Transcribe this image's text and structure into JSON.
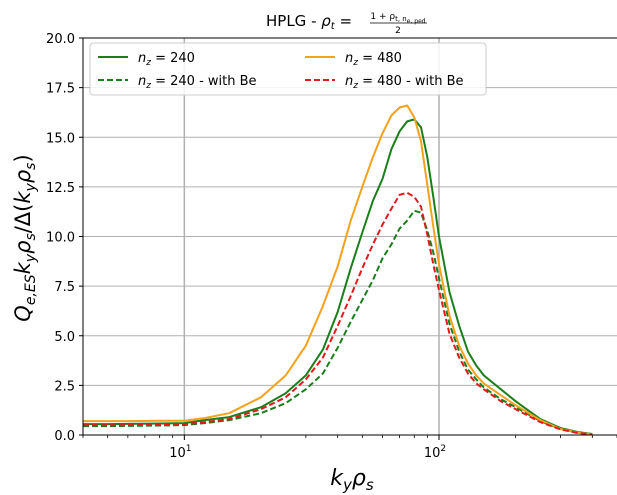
{
  "chart_data": {
    "type": "line",
    "title": "HPLG - ρt = (1 + ρt,ne,ped) / 2",
    "title_parts": {
      "prefix": "HPLG - ",
      "rho": "ρ",
      "rho_sub": "t",
      "equals": " = ",
      "numerator": "1 + ρ",
      "numerator_sub": "t, n",
      "numerator_subsub": "e, ped",
      "denominator": "2"
    },
    "xlabel": "kyρs",
    "xlabel_parts": {
      "k": "k",
      "k_sub": "y",
      "rho": "ρ",
      "rho_sub": "s"
    },
    "ylabel": "Qe,ES kyρs / Δ(kyρs)",
    "ylabel_parts": {
      "Q": "Q",
      "Q_sub": "e,ES",
      "k": "k",
      "k_sub": "y",
      "rho": "ρ",
      "rho_sub": "s",
      "mid": "/Δ(",
      "k2": "k",
      "k2_sub": "y",
      "rho2": "ρ",
      "rho2_sub": "s",
      "end": ")"
    },
    "xscale": "log",
    "xlim": [
      4,
      500
    ],
    "ylim": [
      0,
      20
    ],
    "x_ticks": [
      {
        "value": 10,
        "base": "10",
        "exp": "1"
      },
      {
        "value": 100,
        "base": "10",
        "exp": "2"
      }
    ],
    "y_ticks": [
      0.0,
      2.5,
      5.0,
      7.5,
      10.0,
      12.5,
      15.0,
      17.5,
      20.0
    ],
    "y_tick_labels": [
      "0.0",
      "2.5",
      "5.0",
      "7.5",
      "10.0",
      "12.5",
      "15.0",
      "17.5",
      "20.0"
    ],
    "grid": true,
    "legend_position": "top-left",
    "series": [
      {
        "name": "n_z = 240",
        "legend": {
          "n": "n",
          "sub": "z",
          "rest": " = 240"
        },
        "color": "#1a7f1a",
        "dash": "solid",
        "x": [
          4,
          5,
          6,
          8,
          10,
          12,
          15,
          20,
          25,
          30,
          35,
          40,
          45,
          50,
          55,
          60,
          65,
          70,
          75,
          80,
          85,
          90,
          95,
          100,
          110,
          120,
          130,
          140,
          150,
          175,
          200,
          250,
          300,
          350,
          400
        ],
        "y": [
          0.55,
          0.55,
          0.56,
          0.58,
          0.6,
          0.75,
          0.9,
          1.4,
          2.1,
          3.0,
          4.3,
          6.2,
          8.4,
          10.2,
          11.8,
          12.9,
          14.4,
          15.3,
          15.8,
          15.9,
          15.5,
          14.0,
          12.0,
          10.0,
          7.2,
          5.5,
          4.2,
          3.5,
          3.0,
          2.3,
          1.7,
          0.8,
          0.35,
          0.15,
          0.05
        ]
      },
      {
        "name": "n_z = 240 - with Be",
        "legend": {
          "n": "n",
          "sub": "z",
          "rest": " = 240 - with Be"
        },
        "color": "#1a7f1a",
        "dash": "dashed",
        "x": [
          4,
          5,
          6,
          8,
          10,
          12,
          15,
          20,
          25,
          30,
          35,
          40,
          45,
          50,
          55,
          60,
          65,
          70,
          75,
          80,
          85,
          90,
          95,
          100,
          110,
          120,
          130,
          140,
          150,
          175,
          200,
          250,
          300,
          350,
          400
        ],
        "y": [
          0.45,
          0.45,
          0.46,
          0.48,
          0.5,
          0.6,
          0.75,
          1.1,
          1.6,
          2.3,
          3.1,
          4.4,
          5.7,
          6.8,
          7.8,
          8.9,
          9.6,
          10.4,
          10.8,
          11.3,
          11.2,
          10.3,
          9.2,
          7.9,
          5.6,
          4.2,
          3.3,
          2.8,
          2.4,
          1.8,
          1.4,
          0.7,
          0.3,
          0.12,
          0.04
        ]
      },
      {
        "name": "n_z = 480",
        "legend": {
          "n": "n",
          "sub": "z",
          "rest": " = 480"
        },
        "color": "#f5a11c",
        "dash": "solid",
        "x": [
          4,
          5,
          6,
          8,
          10,
          12,
          15,
          20,
          25,
          30,
          35,
          40,
          45,
          50,
          55,
          60,
          65,
          70,
          75,
          80,
          85,
          90,
          95,
          100,
          110,
          120,
          130,
          140,
          150,
          175,
          200,
          250,
          300,
          350,
          400
        ],
        "y": [
          0.7,
          0.7,
          0.7,
          0.72,
          0.72,
          0.85,
          1.1,
          1.9,
          3.0,
          4.5,
          6.5,
          8.5,
          10.8,
          12.5,
          14.0,
          15.2,
          16.1,
          16.5,
          16.6,
          16.0,
          14.8,
          12.6,
          10.5,
          8.6,
          6.0,
          4.5,
          3.6,
          3.0,
          2.6,
          2.0,
          1.5,
          0.75,
          0.3,
          0.12,
          0.04
        ]
      },
      {
        "name": "n_z = 480 - with Be",
        "legend": {
          "n": "n",
          "sub": "z",
          "rest": " = 480 - with Be"
        },
        "color": "#e31a1c",
        "dash": "dashed",
        "x": [
          4,
          5,
          6,
          8,
          10,
          12,
          15,
          20,
          25,
          30,
          35,
          40,
          45,
          50,
          55,
          60,
          65,
          70,
          75,
          80,
          85,
          90,
          95,
          100,
          110,
          120,
          130,
          140,
          150,
          175,
          200,
          250,
          300,
          350,
          400
        ],
        "y": [
          0.5,
          0.5,
          0.5,
          0.52,
          0.55,
          0.65,
          0.8,
          1.3,
          1.9,
          2.8,
          3.9,
          5.5,
          7.0,
          8.4,
          9.6,
          10.6,
          11.4,
          12.1,
          12.2,
          12.0,
          11.5,
          10.1,
          8.6,
          7.3,
          5.1,
          3.9,
          3.1,
          2.6,
          2.3,
          1.7,
          1.3,
          0.65,
          0.28,
          0.1,
          0.03
        ]
      }
    ]
  }
}
